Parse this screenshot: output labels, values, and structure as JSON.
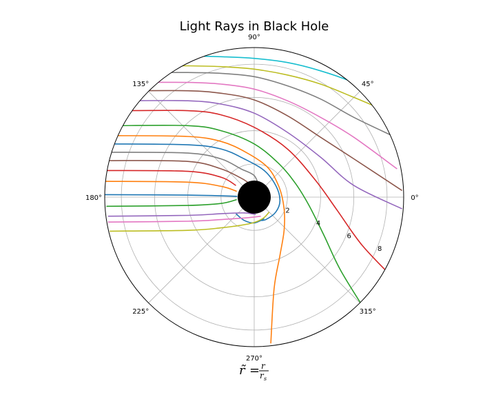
{
  "chart_data": {
    "type": "polar-line",
    "title": "Light Rays in Black Hole",
    "xlabel": {
      "lhs": "r̃",
      "equals": "=",
      "numerator": "r",
      "denominator": "r",
      "denominator_sub": "s"
    },
    "r_ticks": [
      "2",
      "4",
      "6",
      "8"
    ],
    "theta_ticks": [
      "0°",
      "45°",
      "90°",
      "135°",
      "180°",
      "225°",
      "270°",
      "315°"
    ],
    "r_max": 9,
    "grid": true,
    "black_hole_radius": 1,
    "series": [
      {
        "color": "#17becf",
        "points": [
          [
            -6.2,
            8.5
          ],
          [
            -4,
            8.5
          ],
          [
            -2,
            8.45
          ],
          [
            0,
            8.35
          ],
          [
            2,
            8.1
          ],
          [
            4,
            7.6
          ],
          [
            6,
            6.9
          ],
          [
            7.5,
            6.2
          ]
        ]
      },
      {
        "color": "#bcbd22",
        "points": [
          [
            -6.8,
            7.9
          ],
          [
            -4,
            7.9
          ],
          [
            -2,
            7.85
          ],
          [
            0,
            7.7
          ],
          [
            2,
            7.35
          ],
          [
            4,
            6.8
          ],
          [
            6,
            6.0
          ],
          [
            7.9,
            5.2
          ]
        ]
      },
      {
        "color": "#7f7f7f",
        "points": [
          [
            -7.0,
            7.5
          ],
          [
            -4,
            7.5
          ],
          [
            -2,
            7.45
          ],
          [
            0,
            7.25
          ],
          [
            2,
            6.7
          ],
          [
            4,
            5.9
          ],
          [
            6,
            4.8
          ],
          [
            8.3,
            3.7
          ]
        ]
      },
      {
        "color": "#e377c2",
        "points": [
          [
            -7.4,
            6.9
          ],
          [
            -4,
            6.9
          ],
          [
            -2,
            6.8
          ],
          [
            0,
            6.5
          ],
          [
            2,
            5.8
          ],
          [
            4,
            4.8
          ],
          [
            6,
            3.6
          ],
          [
            8.6,
            1.7
          ]
        ]
      },
      {
        "color": "#8c564b",
        "points": [
          [
            -7.6,
            6.4
          ],
          [
            -4,
            6.4
          ],
          [
            -2,
            6.25
          ],
          [
            0,
            5.85
          ],
          [
            2,
            4.9
          ],
          [
            4,
            3.6
          ],
          [
            6,
            2.3
          ],
          [
            8.9,
            0.4
          ]
        ]
      },
      {
        "color": "#9467bd",
        "points": [
          [
            -7.8,
            5.8
          ],
          [
            -4,
            5.8
          ],
          [
            -2,
            5.6
          ],
          [
            0,
            5.05
          ],
          [
            2,
            3.9
          ],
          [
            4,
            2.4
          ],
          [
            6,
            0.7
          ],
          [
            8.9,
            -0.7
          ]
        ]
      },
      {
        "color": "#d62728",
        "points": [
          [
            -8.0,
            5.2
          ],
          [
            -4,
            5.2
          ],
          [
            -2,
            4.95
          ],
          [
            0,
            4.2
          ],
          [
            2,
            2.9
          ],
          [
            3.7,
            1.0
          ],
          [
            5,
            -0.8
          ],
          [
            6.5,
            -2.9
          ],
          [
            8.4,
            -4.9
          ]
        ]
      },
      {
        "color": "#2ca02c",
        "points": [
          [
            -8.3,
            4.3
          ],
          [
            -4,
            4.3
          ],
          [
            -2,
            4.0
          ],
          [
            0,
            3.2
          ],
          [
            1.5,
            2.0
          ],
          [
            2.5,
            0.8
          ],
          [
            3.3,
            -0.5
          ],
          [
            4.2,
            -2.3
          ],
          [
            5.2,
            -4.4
          ],
          [
            6.8,
            -7.0
          ]
        ]
      },
      {
        "color": "#ff7f0e",
        "points": [
          [
            -8.4,
            3.7
          ],
          [
            -4,
            3.65
          ],
          [
            -2,
            3.35
          ],
          [
            -0.5,
            2.7
          ],
          [
            0.8,
            1.8
          ],
          [
            1.5,
            0.6
          ],
          [
            1.8,
            -0.7
          ],
          [
            1.8,
            -2.0
          ],
          [
            1.55,
            -3.5
          ],
          [
            1.2,
            -5.5
          ],
          [
            1.0,
            -8.8
          ]
        ]
      },
      {
        "color": "#1f77b4",
        "points": [
          [
            -8.6,
            3.2
          ],
          [
            -4,
            3.15
          ],
          [
            -2,
            2.9
          ],
          [
            -0.6,
            2.3
          ],
          [
            0.6,
            1.6
          ],
          [
            1.3,
            0.7
          ],
          [
            1.55,
            -0.2
          ],
          [
            1.3,
            -0.9
          ],
          [
            0.7,
            -1.35
          ],
          [
            0.3,
            -1.4
          ]
        ]
      },
      {
        "color": "#7f7f7f",
        "points": [
          [
            -8.7,
            2.7
          ],
          [
            -4,
            2.65
          ],
          [
            -2,
            2.3
          ],
          [
            -0.8,
            1.7
          ],
          [
            0,
            1.3
          ],
          [
            0.3,
            0.6
          ]
        ]
      },
      {
        "color": "#8c564b",
        "points": [
          [
            -8.8,
            2.2
          ],
          [
            -4,
            2.15
          ],
          [
            -2,
            1.7
          ],
          [
            -0.8,
            1.15
          ],
          [
            -0.4,
            0.9
          ]
        ]
      },
      {
        "color": "#d62728",
        "points": [
          [
            -8.9,
            1.6
          ],
          [
            -4,
            1.55
          ],
          [
            -2,
            1.2
          ],
          [
            -1.1,
            0.7
          ]
        ]
      },
      {
        "color": "#ff7f0e",
        "points": [
          [
            -9.0,
            0.95
          ],
          [
            -4,
            0.9
          ],
          [
            -2,
            0.65
          ],
          [
            -1.05,
            0.35
          ]
        ]
      },
      {
        "color": "#1f77b4",
        "points": [
          [
            -9.0,
            0.15
          ],
          [
            -4,
            0.12
          ],
          [
            -1.02,
            0.05
          ]
        ]
      },
      {
        "color": "#2ca02c",
        "points": [
          [
            -8.9,
            -0.55
          ],
          [
            -4,
            -0.5
          ],
          [
            -2,
            -0.38
          ],
          [
            -1.05,
            -0.15
          ]
        ]
      },
      {
        "color": "#1f77b4",
        "points": [
          [
            -1.1,
            -1.0
          ],
          [
            -0.6,
            -1.4
          ],
          [
            0,
            -1.55
          ],
          [
            0.6,
            -1.3
          ]
        ]
      },
      {
        "color": "#9467bd",
        "points": [
          [
            -8.8,
            -1.15
          ],
          [
            -4,
            -1.1
          ],
          [
            -2,
            -1.0
          ],
          [
            -0.6,
            -0.95
          ],
          [
            0.1,
            -1.05
          ]
        ]
      },
      {
        "color": "#e377c2",
        "points": [
          [
            -8.8,
            -1.5
          ],
          [
            -4,
            -1.45
          ],
          [
            -2,
            -1.35
          ],
          [
            -0.5,
            -1.25
          ],
          [
            0.4,
            -1.15
          ]
        ]
      },
      {
        "color": "#bcbd22",
        "points": [
          [
            -8.7,
            -2.05
          ],
          [
            -4,
            -2.0
          ],
          [
            -2,
            -1.85
          ],
          [
            -0.3,
            -1.6
          ],
          [
            0.5,
            -1.3
          ],
          [
            0.9,
            -0.9
          ]
        ]
      }
    ]
  }
}
